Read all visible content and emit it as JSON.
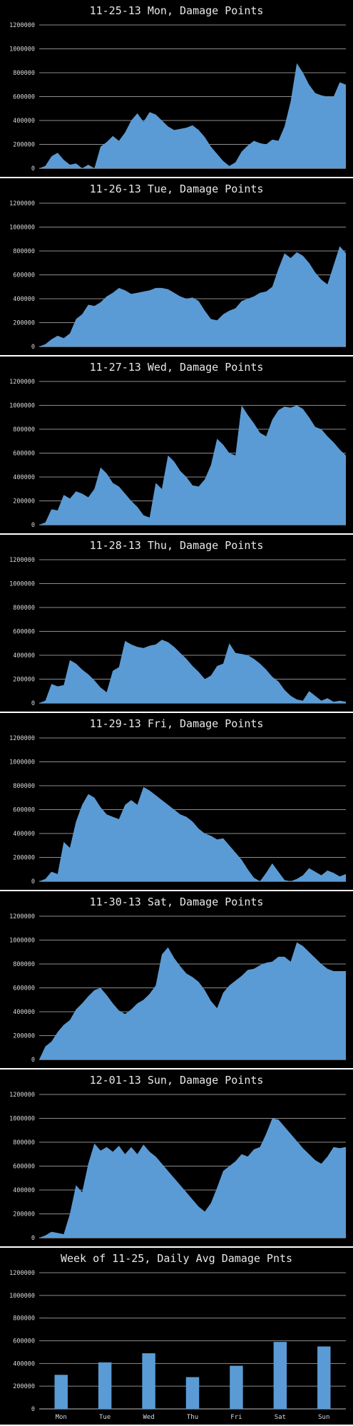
{
  "colors": {
    "background": "#000000",
    "fill": "#5b9bd5",
    "grid": "#8c8c8c",
    "text": "#d9d9d9"
  },
  "chart_data": [
    {
      "type": "area",
      "title": "11-25-13 Mon, Damage Points",
      "ylim": [
        0,
        1200000
      ],
      "yticks": [
        "0",
        "200000",
        "400000",
        "600000",
        "800000",
        "1000000",
        "1200000"
      ],
      "grid": true,
      "x": [
        0,
        0.02,
        0.04,
        0.06,
        0.08,
        0.1,
        0.12,
        0.14,
        0.16,
        0.18,
        0.2,
        0.22,
        0.24,
        0.26,
        0.28,
        0.3,
        0.32,
        0.34,
        0.36,
        0.38,
        0.4,
        0.42,
        0.44,
        0.46,
        0.48,
        0.5,
        0.52,
        0.54,
        0.56,
        0.58,
        0.6,
        0.62,
        0.64,
        0.66,
        0.68,
        0.7,
        0.72,
        0.74,
        0.76,
        0.78,
        0.8,
        0.82,
        0.84,
        0.86,
        0.88,
        0.9,
        0.92,
        0.94,
        0.96,
        0.98,
        1
      ],
      "values": [
        0,
        20000,
        100000,
        130000,
        70000,
        30000,
        40000,
        0,
        30000,
        0,
        180000,
        220000,
        270000,
        230000,
        300000,
        400000,
        460000,
        390000,
        470000,
        450000,
        400000,
        350000,
        320000,
        330000,
        340000,
        360000,
        320000,
        260000,
        180000,
        120000,
        60000,
        20000,
        50000,
        140000,
        190000,
        230000,
        210000,
        200000,
        240000,
        230000,
        350000,
        560000,
        880000,
        800000,
        700000,
        630000,
        610000,
        600000,
        600000,
        720000,
        700000
      ]
    },
    {
      "type": "area",
      "title": "11-26-13 Tue, Damage Points",
      "ylim": [
        0,
        1200000
      ],
      "yticks": [
        "0",
        "200000",
        "400000",
        "600000",
        "800000",
        "1000000",
        "1200000"
      ],
      "grid": true,
      "x": [
        0,
        0.02,
        0.04,
        0.06,
        0.08,
        0.1,
        0.12,
        0.14,
        0.16,
        0.18,
        0.2,
        0.22,
        0.24,
        0.26,
        0.28,
        0.3,
        0.32,
        0.34,
        0.36,
        0.38,
        0.4,
        0.42,
        0.44,
        0.46,
        0.48,
        0.5,
        0.52,
        0.54,
        0.56,
        0.58,
        0.6,
        0.62,
        0.64,
        0.66,
        0.68,
        0.7,
        0.72,
        0.74,
        0.76,
        0.78,
        0.8,
        0.82,
        0.84,
        0.86,
        0.88,
        0.9,
        0.92,
        0.94,
        0.96,
        0.98,
        1
      ],
      "values": [
        0,
        20000,
        60000,
        90000,
        70000,
        110000,
        230000,
        270000,
        350000,
        340000,
        370000,
        420000,
        450000,
        490000,
        470000,
        440000,
        450000,
        460000,
        470000,
        490000,
        490000,
        480000,
        450000,
        420000,
        400000,
        410000,
        380000,
        300000,
        230000,
        220000,
        270000,
        300000,
        320000,
        380000,
        400000,
        420000,
        450000,
        460000,
        500000,
        650000,
        780000,
        740000,
        790000,
        760000,
        700000,
        620000,
        560000,
        520000,
        680000,
        840000,
        780000
      ]
    },
    {
      "type": "area",
      "title": "11-27-13 Wed, Damage Points",
      "ylim": [
        0,
        1200000
      ],
      "yticks": [
        "0",
        "200000",
        "400000",
        "600000",
        "800000",
        "1000000",
        "1200000"
      ],
      "grid": true,
      "x": [
        0,
        0.02,
        0.04,
        0.06,
        0.08,
        0.1,
        0.12,
        0.14,
        0.16,
        0.18,
        0.2,
        0.22,
        0.24,
        0.26,
        0.28,
        0.3,
        0.32,
        0.34,
        0.36,
        0.38,
        0.4,
        0.42,
        0.44,
        0.46,
        0.48,
        0.5,
        0.52,
        0.54,
        0.56,
        0.58,
        0.6,
        0.62,
        0.64,
        0.66,
        0.68,
        0.7,
        0.72,
        0.74,
        0.76,
        0.78,
        0.8,
        0.82,
        0.84,
        0.86,
        0.88,
        0.9,
        0.92,
        0.94,
        0.96,
        0.98,
        1
      ],
      "values": [
        0,
        20000,
        130000,
        120000,
        250000,
        220000,
        280000,
        260000,
        230000,
        300000,
        480000,
        430000,
        350000,
        320000,
        260000,
        200000,
        150000,
        80000,
        60000,
        350000,
        300000,
        580000,
        530000,
        450000,
        400000,
        330000,
        320000,
        380000,
        500000,
        720000,
        670000,
        600000,
        580000,
        1000000,
        920000,
        850000,
        770000,
        740000,
        880000,
        960000,
        990000,
        980000,
        1000000,
        970000,
        900000,
        820000,
        800000,
        740000,
        690000,
        630000,
        580000
      ]
    },
    {
      "type": "area",
      "title": "11-28-13 Thu, Damage Points",
      "ylim": [
        0,
        1200000
      ],
      "yticks": [
        "0",
        "200000",
        "400000",
        "600000",
        "800000",
        "1000000",
        "1200000"
      ],
      "grid": true,
      "x": [
        0,
        0.02,
        0.04,
        0.06,
        0.08,
        0.1,
        0.12,
        0.14,
        0.16,
        0.18,
        0.2,
        0.22,
        0.24,
        0.26,
        0.28,
        0.3,
        0.32,
        0.34,
        0.36,
        0.38,
        0.4,
        0.42,
        0.44,
        0.46,
        0.48,
        0.5,
        0.52,
        0.54,
        0.56,
        0.58,
        0.6,
        0.62,
        0.64,
        0.66,
        0.68,
        0.7,
        0.72,
        0.74,
        0.76,
        0.78,
        0.8,
        0.82,
        0.84,
        0.86,
        0.88,
        0.9,
        0.92,
        0.94,
        0.96,
        0.98,
        1
      ],
      "values": [
        0,
        20000,
        160000,
        140000,
        150000,
        360000,
        330000,
        280000,
        240000,
        190000,
        130000,
        90000,
        270000,
        300000,
        520000,
        490000,
        470000,
        460000,
        480000,
        490000,
        530000,
        510000,
        470000,
        420000,
        370000,
        310000,
        260000,
        200000,
        230000,
        310000,
        330000,
        500000,
        420000,
        410000,
        400000,
        370000,
        330000,
        280000,
        220000,
        180000,
        110000,
        60000,
        30000,
        20000,
        100000,
        60000,
        20000,
        40000,
        10000,
        20000,
        10000
      ]
    },
    {
      "type": "area",
      "title": "11-29-13 Fri, Damage Points",
      "ylim": [
        0,
        1200000
      ],
      "yticks": [
        "0",
        "200000",
        "400000",
        "600000",
        "800000",
        "1000000",
        "1200000"
      ],
      "grid": true,
      "x": [
        0,
        0.02,
        0.04,
        0.06,
        0.08,
        0.1,
        0.12,
        0.14,
        0.16,
        0.18,
        0.2,
        0.22,
        0.24,
        0.26,
        0.28,
        0.3,
        0.32,
        0.34,
        0.36,
        0.38,
        0.4,
        0.42,
        0.44,
        0.46,
        0.48,
        0.5,
        0.52,
        0.54,
        0.56,
        0.58,
        0.6,
        0.62,
        0.64,
        0.66,
        0.68,
        0.7,
        0.72,
        0.74,
        0.76,
        0.78,
        0.8,
        0.82,
        0.84,
        0.86,
        0.88,
        0.9,
        0.92,
        0.94,
        0.96,
        0.98,
        1
      ],
      "values": [
        0,
        20000,
        80000,
        60000,
        330000,
        280000,
        500000,
        640000,
        730000,
        700000,
        620000,
        560000,
        540000,
        520000,
        640000,
        680000,
        640000,
        790000,
        760000,
        720000,
        680000,
        640000,
        600000,
        560000,
        540000,
        500000,
        440000,
        400000,
        380000,
        350000,
        360000,
        300000,
        240000,
        180000,
        100000,
        30000,
        0,
        70000,
        150000,
        80000,
        10000,
        0,
        20000,
        50000,
        110000,
        80000,
        50000,
        90000,
        70000,
        40000,
        60000
      ]
    },
    {
      "type": "area",
      "title": "11-30-13 Sat, Damage Points",
      "ylim": [
        0,
        1200000
      ],
      "yticks": [
        "0",
        "200000",
        "400000",
        "600000",
        "800000",
        "1000000",
        "1200000"
      ],
      "grid": true,
      "x": [
        0,
        0.02,
        0.04,
        0.06,
        0.08,
        0.1,
        0.12,
        0.14,
        0.16,
        0.18,
        0.2,
        0.22,
        0.24,
        0.26,
        0.28,
        0.3,
        0.32,
        0.34,
        0.36,
        0.38,
        0.4,
        0.42,
        0.44,
        0.46,
        0.48,
        0.5,
        0.52,
        0.54,
        0.56,
        0.58,
        0.6,
        0.62,
        0.64,
        0.66,
        0.68,
        0.7,
        0.72,
        0.74,
        0.76,
        0.78,
        0.8,
        0.82,
        0.84,
        0.86,
        0.88,
        0.9,
        0.92,
        0.94,
        0.96,
        0.98,
        1
      ],
      "values": [
        0,
        110000,
        150000,
        230000,
        290000,
        330000,
        420000,
        470000,
        530000,
        580000,
        600000,
        540000,
        470000,
        410000,
        380000,
        420000,
        470000,
        500000,
        550000,
        620000,
        880000,
        940000,
        850000,
        780000,
        720000,
        690000,
        650000,
        580000,
        490000,
        430000,
        560000,
        620000,
        660000,
        700000,
        750000,
        760000,
        790000,
        810000,
        820000,
        860000,
        860000,
        820000,
        980000,
        950000,
        900000,
        850000,
        800000,
        760000,
        740000,
        740000,
        740000
      ]
    },
    {
      "type": "area",
      "title": "12-01-13 Sun, Damage Points",
      "ylim": [
        0,
        1200000
      ],
      "yticks": [
        "0",
        "200000",
        "400000",
        "600000",
        "800000",
        "1000000",
        "1200000"
      ],
      "grid": true,
      "x": [
        0,
        0.02,
        0.04,
        0.06,
        0.08,
        0.1,
        0.12,
        0.14,
        0.16,
        0.18,
        0.2,
        0.22,
        0.24,
        0.26,
        0.28,
        0.3,
        0.32,
        0.34,
        0.36,
        0.38,
        0.4,
        0.42,
        0.44,
        0.46,
        0.48,
        0.5,
        0.52,
        0.54,
        0.56,
        0.58,
        0.6,
        0.62,
        0.64,
        0.66,
        0.68,
        0.7,
        0.72,
        0.74,
        0.76,
        0.78,
        0.8,
        0.82,
        0.84,
        0.86,
        0.88,
        0.9,
        0.92,
        0.94,
        0.96,
        0.98,
        1
      ],
      "values": [
        0,
        20000,
        50000,
        40000,
        30000,
        200000,
        440000,
        380000,
        620000,
        790000,
        730000,
        760000,
        720000,
        770000,
        700000,
        760000,
        700000,
        780000,
        720000,
        680000,
        620000,
        560000,
        500000,
        440000,
        380000,
        320000,
        260000,
        220000,
        290000,
        420000,
        560000,
        600000,
        640000,
        700000,
        680000,
        740000,
        760000,
        870000,
        1000000,
        990000,
        930000,
        870000,
        810000,
        750000,
        700000,
        650000,
        620000,
        680000,
        760000,
        750000,
        760000
      ]
    },
    {
      "type": "bar",
      "title": "Week of 11-25, Daily Avg Damage Pnts",
      "ylim": [
        0,
        1200000
      ],
      "yticks": [
        "0",
        "200000",
        "400000",
        "600000",
        "800000",
        "1000000",
        "1200000"
      ],
      "grid": true,
      "categories": [
        "Mon",
        "Tue",
        "Wed",
        "Thu",
        "Fri",
        "Sat",
        "Sun"
      ],
      "values": [
        300000,
        410000,
        490000,
        280000,
        380000,
        590000,
        550000
      ]
    }
  ]
}
